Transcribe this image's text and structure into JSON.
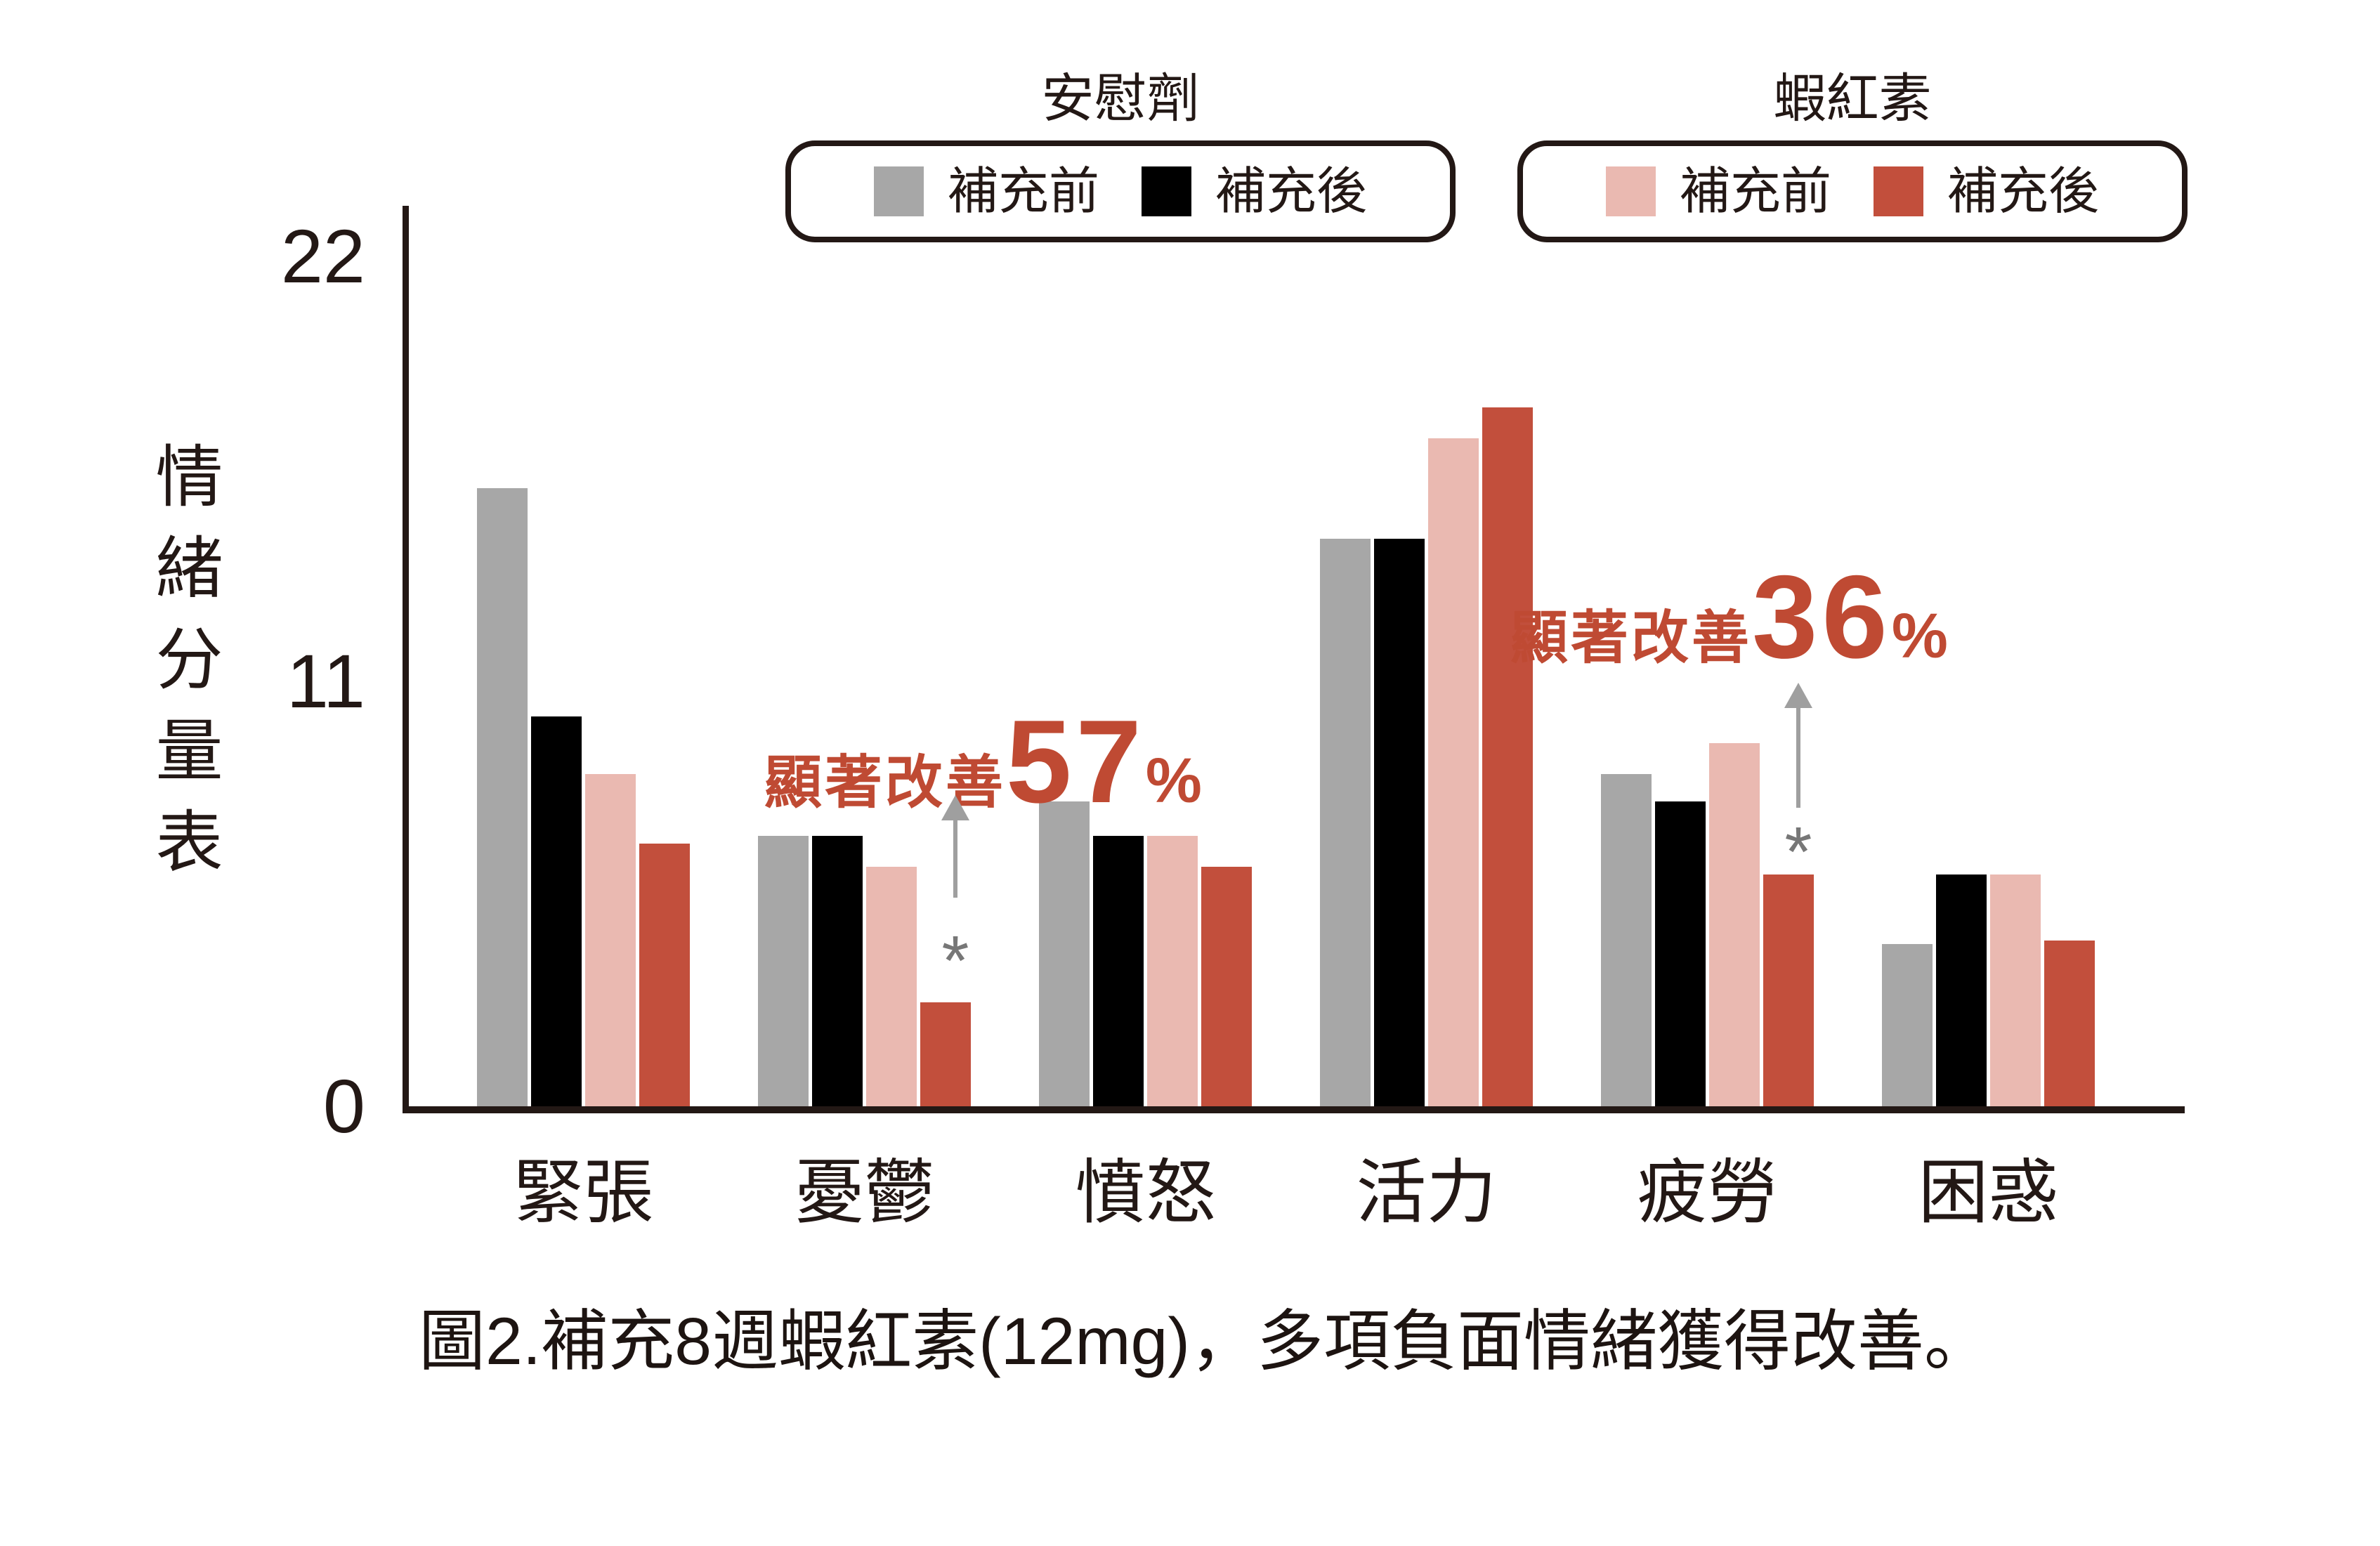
{
  "legend": {
    "groups": [
      {
        "title": "安慰劑",
        "items": [
          {
            "label": "補充前",
            "color": "#a7a7a7"
          },
          {
            "label": "補充後",
            "color": "#000000"
          }
        ]
      },
      {
        "title": "蝦紅素",
        "items": [
          {
            "label": "補充前",
            "color": "#eab9b1"
          },
          {
            "label": "補充後",
            "color": "#c24f3c"
          }
        ]
      }
    ]
  },
  "chart_data": {
    "type": "bar",
    "title": "",
    "ylabel": "情緒分量表",
    "xlabel": "",
    "ylim": [
      0,
      22
    ],
    "yticks": [
      "22",
      "11",
      "0"
    ],
    "ytick_values": [
      22,
      11,
      0
    ],
    "grid": false,
    "legend_position": "top",
    "categories": [
      "緊張",
      "憂鬱",
      "憤怒",
      "活力",
      "疲勞",
      "困惑"
    ],
    "series": [
      {
        "name": "安慰劑 補充前",
        "color": "#a7a7a7",
        "values": [
          16.0,
          7.0,
          7.9,
          14.7,
          8.6,
          4.2
        ]
      },
      {
        "name": "安慰劑 補充後",
        "color": "#000000",
        "values": [
          10.1,
          7.0,
          7.0,
          14.7,
          7.9,
          6.0
        ]
      },
      {
        "name": "蝦紅素 補充前",
        "color": "#eab9b1",
        "values": [
          8.6,
          6.2,
          7.0,
          17.3,
          9.4,
          6.0
        ]
      },
      {
        "name": "蝦紅素 補充後",
        "color": "#c24f3c",
        "values": [
          6.8,
          2.7,
          6.2,
          18.1,
          6.0,
          4.3
        ]
      }
    ],
    "annotations": [
      {
        "prefix": "顯著改善",
        "value": "57",
        "suffix": "%",
        "marker": "*",
        "category": "憂鬱",
        "series": "蝦紅素 補充後"
      },
      {
        "prefix": "顯著改善",
        "value": "36",
        "suffix": "%",
        "marker": "*",
        "category": "疲勞",
        "series": "蝦紅素 補充後"
      }
    ]
  },
  "caption": "圖2.補充8週蝦紅素(12mg)，多項負面情緒獲得改善。",
  "colors": {
    "background": "#ffffff",
    "axis": "#231815",
    "bar_gray": "#a7a7a7",
    "bar_black": "#000000",
    "bar_pink": "#eab9b1",
    "bar_red": "#c24f3c",
    "annotation_red": "#bf4a33",
    "arrow_gray": "#9f9f9f"
  }
}
